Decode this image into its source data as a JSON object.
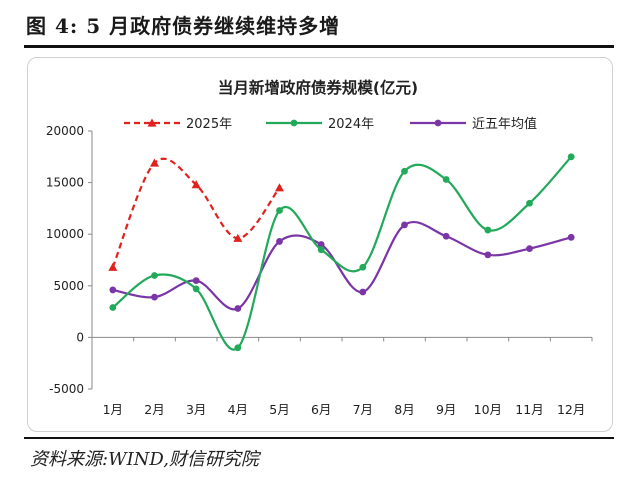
{
  "figure_title": "图 4:  5 月政府债券继续维持多增",
  "source": "资料来源:WIND,财信研究院",
  "chart_data": {
    "type": "line",
    "title": "当月新增政府债券规模(亿元)",
    "categories": [
      "1月",
      "2月",
      "3月",
      "4月",
      "5月",
      "6月",
      "7月",
      "8月",
      "9月",
      "10月",
      "11月",
      "12月"
    ],
    "ylim": [
      -5000,
      20000
    ],
    "yticks": [
      20000,
      15000,
      10000,
      5000,
      0,
      -5000
    ],
    "ytick_labels": [
      "20000",
      "15000",
      "10000",
      "5000",
      "0",
      "-5000"
    ],
    "grid": false,
    "legend_position": "top",
    "series": [
      {
        "name": "2025年",
        "color": "#e0211d",
        "dash": true,
        "marker": "triangle",
        "values": [
          6800,
          16900,
          14800,
          9600,
          14500,
          null,
          null,
          null,
          null,
          null,
          null,
          null
        ]
      },
      {
        "name": "2024年",
        "color": "#22a95a",
        "dash": false,
        "marker": "circle",
        "values": [
          2900,
          6000,
          4700,
          -1000,
          12300,
          8500,
          6800,
          16100,
          15300,
          10400,
          13000,
          17500
        ]
      },
      {
        "name": "近五年均值",
        "color": "#7a35a6",
        "dash": false,
        "marker": "circle",
        "values": [
          4600,
          3900,
          5500,
          2800,
          9300,
          9000,
          4400,
          10900,
          9800,
          8000,
          8600,
          9700
        ]
      }
    ]
  }
}
